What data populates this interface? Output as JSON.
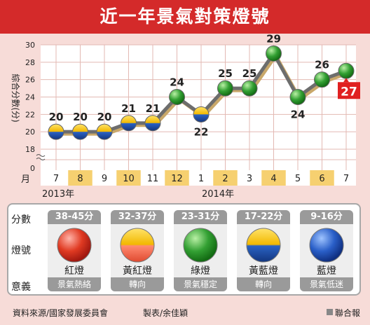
{
  "title": "近一年景氣對策燈號",
  "chart_data": {
    "type": "line",
    "ylabel": "綜合分數(分)",
    "xlabel": "月",
    "ylim": [
      18,
      30
    ],
    "yticks": [
      "30",
      "28",
      "26",
      "24",
      "22",
      "20",
      "18"
    ],
    "y_zero_label": "0",
    "categories": [
      "7",
      "8",
      "9",
      "10",
      "11",
      "12",
      "1",
      "2",
      "3",
      "4",
      "5",
      "6",
      "7"
    ],
    "year_labels": [
      "2013年",
      "2014年"
    ],
    "values": [
      20,
      20,
      20,
      21,
      21,
      24,
      22,
      25,
      25,
      29,
      24,
      26,
      27
    ],
    "value_labels": [
      "20",
      "20",
      "20",
      "21",
      "21",
      "24",
      "22",
      "25",
      "25",
      "29",
      "24",
      "26",
      "27"
    ],
    "signals": [
      "yellow-blue",
      "yellow-blue",
      "yellow-blue",
      "yellow-blue",
      "yellow-blue",
      "green",
      "yellow-blue",
      "green",
      "green",
      "green",
      "green",
      "green",
      "green"
    ],
    "latest_highlight": "27",
    "grid": true,
    "colors": {
      "line": "#6d6d6d",
      "shadow": "#c9a86a",
      "highlight": "#e02020",
      "yellow": "#f3c000",
      "blue": "#1f57b8",
      "green": "#2f9a2f"
    }
  },
  "legend": {
    "row_labels": {
      "score": "分數",
      "signal": "燈號",
      "meaning": "意義"
    },
    "columns": [
      {
        "range": "38-45分",
        "name": "紅燈",
        "meaning": "景氣熱絡",
        "ball": "red"
      },
      {
        "range": "32-37分",
        "name": "黃紅燈",
        "meaning": "轉向",
        "ball": "yellow-red"
      },
      {
        "range": "23-31分",
        "name": "綠燈",
        "meaning": "景氣穩定",
        "ball": "green"
      },
      {
        "range": "17-22分",
        "name": "黃藍燈",
        "meaning": "轉向",
        "ball": "yellow-blue"
      },
      {
        "range": "9-16分",
        "name": "藍燈",
        "meaning": "景氣低迷",
        "ball": "blue"
      }
    ]
  },
  "footer": {
    "source": "資料來源/國家發展委員會",
    "credit": "製表/余佳穎",
    "brand": "聯合報"
  }
}
